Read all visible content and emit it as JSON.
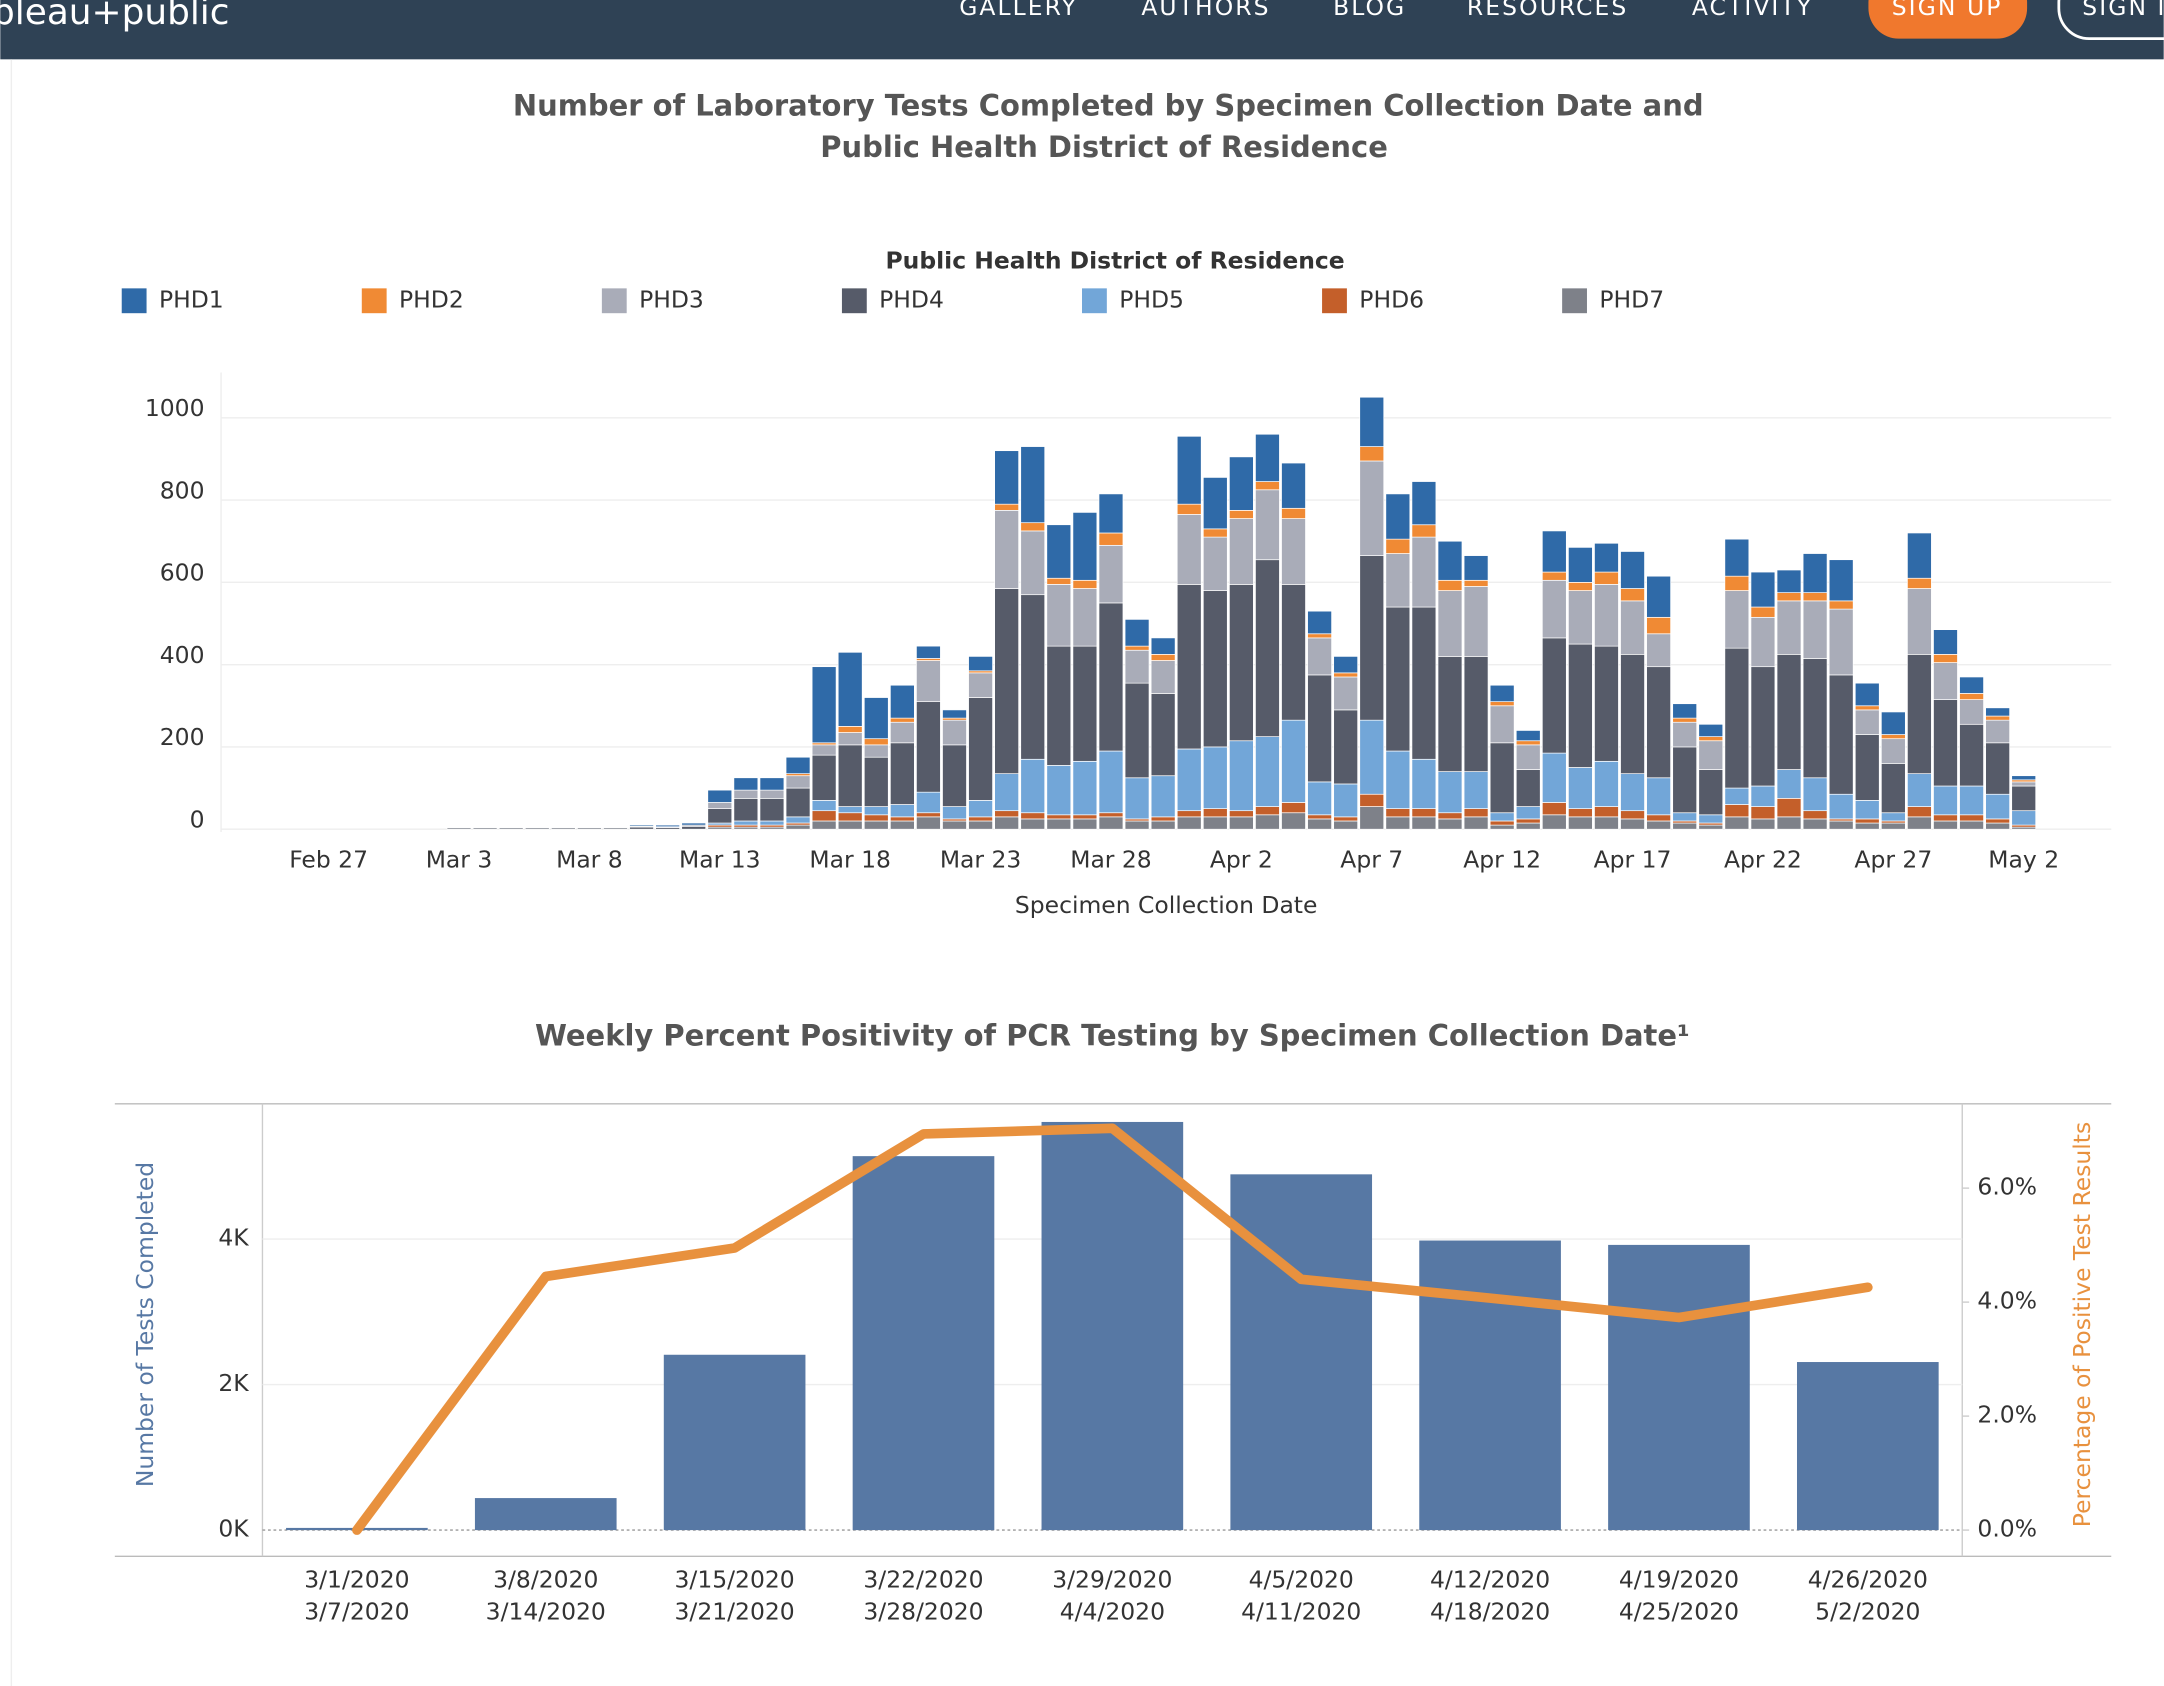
{
  "header": {
    "logo": "bleau+public",
    "nav": [
      "GALLERY",
      "AUTHORS",
      "BLOG",
      "RESOURCES",
      "ACTIVITY"
    ],
    "sign_up": "SIGN UP",
    "sign_in": "SIGN IN"
  },
  "chart_data": [
    {
      "type": "bar",
      "stacked": true,
      "title": [
        "Number of Laboratory Tests Completed by Specimen Collection Date and",
        "Public Health District of Residence"
      ],
      "legend_title": "Public Health District of Residence",
      "x_label": "Specimen Collection Date",
      "categories": [
        null,
        null,
        "Feb 27",
        null,
        null,
        null,
        null,
        "Mar 3",
        null,
        null,
        null,
        null,
        "Mar 8",
        null,
        null,
        null,
        null,
        "Mar 13",
        null,
        null,
        null,
        null,
        "Mar 18",
        null,
        null,
        null,
        null,
        "Mar 23",
        null,
        null,
        null,
        null,
        "Mar 28",
        null,
        null,
        null,
        null,
        "Apr 2",
        null,
        null,
        null,
        null,
        "Apr 7",
        null,
        null,
        null,
        null,
        "Apr 12",
        null,
        null,
        null,
        null,
        "Apr 17",
        null,
        null,
        null,
        null,
        "Apr 22",
        null,
        null,
        null,
        null,
        "Apr 27",
        null,
        null,
        null,
        null,
        "May 2"
      ],
      "ylim": [
        0,
        1110
      ],
      "yticks": [
        0,
        200,
        400,
        600,
        800,
        1000
      ],
      "grid": true,
      "series": [
        {
          "name": "PHD1",
          "color": "#2f6aa8",
          "values": [
            0,
            0,
            0,
            0,
            0,
            0,
            0,
            0,
            0,
            0,
            0,
            0,
            0,
            0,
            3,
            4,
            5,
            30,
            30,
            30,
            40,
            185,
            180,
            100,
            80,
            30,
            20,
            35,
            130,
            185,
            130,
            165,
            95,
            65,
            40,
            165,
            125,
            130,
            115,
            110,
            55,
            40,
            120,
            110,
            105,
            95,
            60,
            40,
            25,
            100,
            85,
            70,
            90,
            100,
            35,
            30,
            90,
            85,
            55,
            95,
            100,
            55,
            55,
            110,
            60,
            40,
            20,
            10
          ]
        },
        {
          "name": "PHD2",
          "color": "#f08a34",
          "values": [
            0,
            0,
            0,
            0,
            0,
            0,
            0,
            0,
            0,
            0,
            0,
            0,
            0,
            0,
            0,
            0,
            0,
            0,
            0,
            0,
            5,
            5,
            15,
            15,
            10,
            5,
            5,
            5,
            15,
            20,
            15,
            20,
            30,
            10,
            15,
            25,
            20,
            20,
            20,
            25,
            10,
            10,
            35,
            35,
            30,
            25,
            15,
            10,
            10,
            20,
            20,
            30,
            30,
            40,
            10,
            10,
            35,
            25,
            20,
            20,
            20,
            10,
            10,
            25,
            20,
            15,
            10,
            5
          ]
        },
        {
          "name": "PHD3",
          "color": "#a9acb8",
          "values": [
            0,
            0,
            0,
            0,
            0,
            0,
            0,
            0,
            0,
            0,
            0,
            0,
            0,
            0,
            2,
            2,
            3,
            15,
            20,
            20,
            30,
            25,
            30,
            30,
            50,
            100,
            60,
            60,
            190,
            155,
            150,
            140,
            140,
            80,
            80,
            170,
            130,
            160,
            170,
            160,
            90,
            80,
            230,
            130,
            170,
            160,
            170,
            90,
            60,
            140,
            130,
            150,
            130,
            80,
            60,
            70,
            140,
            120,
            130,
            140,
            160,
            60,
            60,
            160,
            90,
            60,
            55,
            10
          ]
        },
        {
          "name": "PHD4",
          "color": "#565b69",
          "values": [
            0,
            0,
            0,
            0,
            0,
            0,
            0,
            3,
            3,
            3,
            3,
            3,
            3,
            3,
            5,
            4,
            7,
            35,
            55,
            55,
            70,
            110,
            150,
            120,
            150,
            220,
            150,
            250,
            450,
            400,
            290,
            280,
            360,
            230,
            200,
            400,
            380,
            380,
            430,
            330,
            260,
            180,
            400,
            350,
            370,
            280,
            280,
            170,
            90,
            280,
            300,
            280,
            290,
            270,
            160,
            110,
            340,
            290,
            280,
            290,
            290,
            160,
            120,
            290,
            210,
            150,
            125,
            60
          ]
        },
        {
          "name": "PHD5",
          "color": "#72a6d8",
          "values": [
            0,
            0,
            0,
            0,
            0,
            0,
            0,
            0,
            0,
            0,
            0,
            0,
            0,
            0,
            0,
            0,
            0,
            5,
            10,
            10,
            15,
            25,
            15,
            20,
            30,
            50,
            30,
            40,
            90,
            130,
            120,
            130,
            150,
            100,
            100,
            150,
            150,
            170,
            170,
            200,
            80,
            80,
            180,
            140,
            120,
            100,
            90,
            20,
            30,
            120,
            100,
            110,
            90,
            90,
            20,
            20,
            40,
            50,
            70,
            80,
            60,
            45,
            20,
            80,
            70,
            70,
            60,
            35
          ]
        },
        {
          "name": "PHD6",
          "color": "#c45f2a",
          "values": [
            0,
            0,
            0,
            0,
            0,
            0,
            0,
            0,
            0,
            0,
            0,
            0,
            0,
            0,
            0,
            0,
            0,
            5,
            5,
            5,
            5,
            25,
            20,
            15,
            10,
            10,
            5,
            10,
            15,
            15,
            10,
            10,
            10,
            5,
            10,
            15,
            20,
            15,
            20,
            25,
            10,
            10,
            30,
            20,
            20,
            15,
            20,
            10,
            10,
            30,
            20,
            25,
            20,
            15,
            5,
            5,
            30,
            30,
            45,
            20,
            5,
            10,
            5,
            25,
            15,
            15,
            10,
            5
          ]
        },
        {
          "name": "PHD7",
          "color": "#7e8189",
          "values": [
            0,
            0,
            0,
            0,
            0,
            0,
            0,
            0,
            0,
            0,
            0,
            0,
            0,
            0,
            0,
            0,
            0,
            5,
            5,
            5,
            10,
            20,
            20,
            20,
            20,
            30,
            20,
            20,
            30,
            25,
            25,
            25,
            30,
            20,
            20,
            30,
            30,
            30,
            35,
            40,
            25,
            20,
            55,
            30,
            30,
            25,
            30,
            10,
            15,
            35,
            30,
            30,
            25,
            20,
            15,
            10,
            30,
            25,
            30,
            25,
            20,
            15,
            15,
            30,
            20,
            20,
            15,
            5
          ]
        }
      ]
    },
    {
      "type": "combo",
      "title": "Weekly Percent Positivity of PCR Testing by Specimen Collection Date¹",
      "y_label": "Number of Tests Completed",
      "y2_label": "Percentage of Positive Test Results",
      "categories": [
        [
          "3/1/2020",
          "3/7/2020"
        ],
        [
          "3/8/2020",
          "3/14/2020"
        ],
        [
          "3/15/2020",
          "3/21/2020"
        ],
        [
          "3/22/2020",
          "3/28/2020"
        ],
        [
          "3/29/2020",
          "4/4/2020"
        ],
        [
          "4/5/2020",
          "4/11/2020"
        ],
        [
          "4/12/2020",
          "4/18/2020"
        ],
        [
          "4/19/2020",
          "4/25/2020"
        ],
        [
          "4/26/2020",
          "5/2/2020"
        ]
      ],
      "ylim": [
        0,
        5860
      ],
      "yticks": [
        {
          "value": 0,
          "label": "0K"
        },
        {
          "value": 2000,
          "label": "2K"
        },
        {
          "value": 4000,
          "label": "4K"
        }
      ],
      "y2lim": [
        0,
        7.48
      ],
      "y2ticks": [
        {
          "value": 0,
          "label": "0.0%"
        },
        {
          "value": 2,
          "label": "2.0%"
        },
        {
          "value": 4,
          "label": "4.0%"
        },
        {
          "value": 6,
          "label": "6.0%"
        }
      ],
      "series": [
        {
          "type": "bar",
          "color": "#5778a4",
          "values": [
            30,
            440,
            2410,
            5140,
            5610,
            4890,
            3980,
            3920,
            2310
          ]
        },
        {
          "type": "line",
          "axis": "y2",
          "color": "#e8913e",
          "values": [
            0,
            4.45,
            4.95,
            6.95,
            7.05,
            4.4,
            4.07,
            3.73,
            4.26
          ]
        }
      ]
    }
  ]
}
